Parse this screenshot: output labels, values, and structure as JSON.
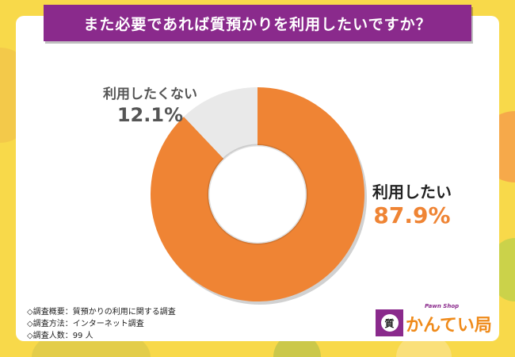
{
  "title": "また必要であれば質預かりを利用したいですか？",
  "chart_data": {
    "type": "pie",
    "donut": true,
    "categories": [
      "利用したい",
      "利用したくない"
    ],
    "values": [
      87.9,
      12.1
    ],
    "value_labels": [
      "87.9%",
      "12.1%"
    ],
    "colors": [
      "#ef8434",
      "#e9e9e9"
    ],
    "start": "top",
    "direction": "clockwise"
  },
  "notes": [
    "◇調査概要：質預かりの利用に関する調査",
    "◇調査方法：インターネット調査",
    "◇調査人数：99 人"
  ],
  "logo": {
    "name": "かんてい局",
    "sub": "Pawn Shop",
    "mark": "質"
  },
  "colors": {
    "background": "#f8d94a",
    "banner": "#8a2a8c",
    "accent": "#ef8434"
  }
}
